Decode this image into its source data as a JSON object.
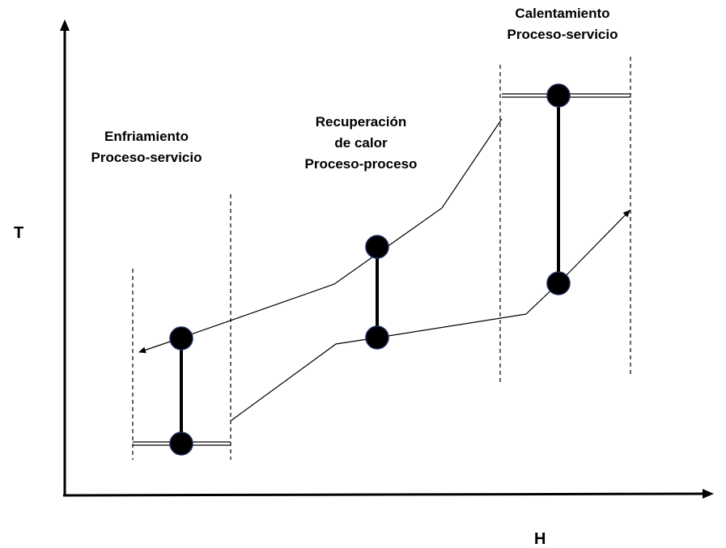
{
  "axes": {
    "y_label": "T",
    "x_label": "H"
  },
  "regions": {
    "cooling": {
      "line1": "Enfriamiento",
      "line2": "Proceso-servicio"
    },
    "recovery": {
      "line1": "Recuperación",
      "line2": "de calor",
      "line3": "Proceso-proceso"
    },
    "heating": {
      "line1": "Calentamiento",
      "line2": "Proceso-servicio"
    }
  },
  "colors": {
    "stroke": "#000000",
    "node_fill": "#000000",
    "node_outline": "#1f2a5c",
    "background": "#ffffff"
  }
}
